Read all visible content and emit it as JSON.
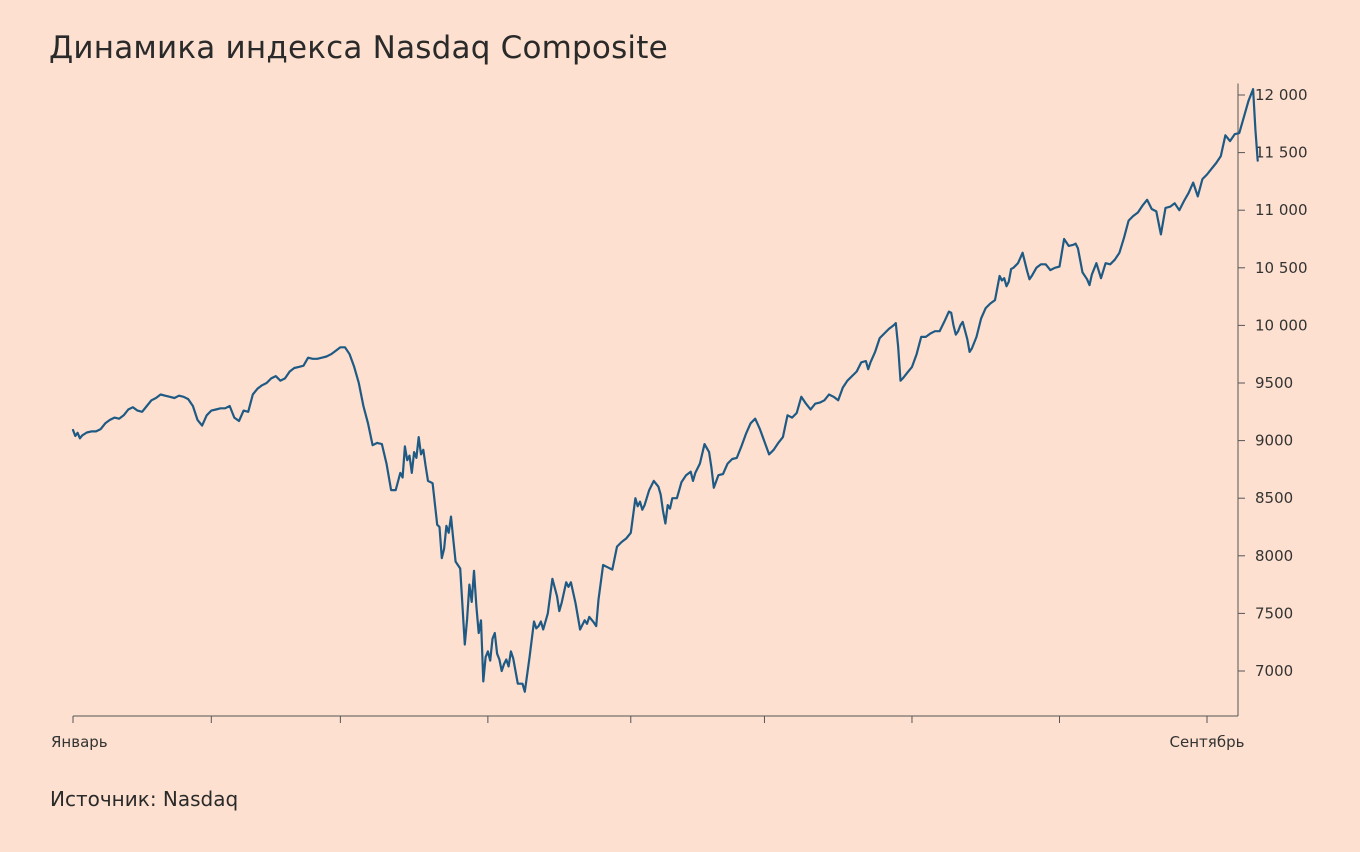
{
  "title": "Динамика индекса Nasdaq Composite",
  "source": "Источник: Nasdaq",
  "colors": {
    "background": "#fde0cf",
    "line": "#1f5a85",
    "axis": "#555555",
    "text": "#2a2a2a"
  },
  "chart_data": {
    "type": "line",
    "title": "Динамика индекса Nasdaq Composite",
    "xlabel": "",
    "ylabel": "",
    "y_axis_position": "right",
    "grid": false,
    "ylim": [
      6620,
      12100
    ],
    "xlim": [
      0,
      246
    ],
    "yticks": [
      7000,
      7500,
      8000,
      8500,
      9000,
      9500,
      10000,
      10500,
      11000,
      11500,
      12000
    ],
    "ytick_labels": [
      "7000",
      "7500",
      "8000",
      "8500",
      "9000",
      "9500",
      "10 000",
      "10 500",
      "11 000",
      "11 500",
      "12 000"
    ],
    "xticks": [
      0,
      30,
      58,
      90,
      121,
      150,
      182,
      214,
      246
    ],
    "x_labels": [
      {
        "at": 0,
        "text": "Январь"
      },
      {
        "at": 246,
        "text": "Сентябрь"
      }
    ],
    "series": [
      {
        "points": [
          [
            0,
            9092
          ],
          [
            0.5,
            9040
          ],
          [
            1,
            9068
          ],
          [
            1.5,
            9020
          ],
          [
            2,
            9045
          ],
          [
            3,
            9070
          ],
          [
            4,
            9080
          ],
          [
            5,
            9080
          ],
          [
            6,
            9100
          ],
          [
            7,
            9150
          ],
          [
            8,
            9180
          ],
          [
            9,
            9200
          ],
          [
            10,
            9190
          ],
          [
            11,
            9220
          ],
          [
            12,
            9270
          ],
          [
            13,
            9290
          ],
          [
            14,
            9260
          ],
          [
            15,
            9250
          ],
          [
            16,
            9300
          ],
          [
            17,
            9350
          ],
          [
            18,
            9370
          ],
          [
            19,
            9400
          ],
          [
            20,
            9390
          ],
          [
            21,
            9380
          ],
          [
            22,
            9370
          ],
          [
            23,
            9390
          ],
          [
            24,
            9380
          ],
          [
            25,
            9360
          ],
          [
            26,
            9300
          ],
          [
            27,
            9180
          ],
          [
            28,
            9130
          ],
          [
            29,
            9220
          ],
          [
            30,
            9260
          ],
          [
            31,
            9270
          ],
          [
            32,
            9280
          ],
          [
            33,
            9280
          ],
          [
            34,
            9300
          ],
          [
            35,
            9200
          ],
          [
            36,
            9170
          ],
          [
            37,
            9260
          ],
          [
            38,
            9250
          ],
          [
            39,
            9400
          ],
          [
            40,
            9450
          ],
          [
            41,
            9480
          ],
          [
            42,
            9500
          ],
          [
            43,
            9540
          ],
          [
            44,
            9560
          ],
          [
            45,
            9520
          ],
          [
            46,
            9540
          ],
          [
            47,
            9600
          ],
          [
            48,
            9630
          ],
          [
            49,
            9640
          ],
          [
            50,
            9650
          ],
          [
            51,
            9720
          ],
          [
            52,
            9710
          ],
          [
            53,
            9710
          ],
          [
            54,
            9720
          ],
          [
            55,
            9730
          ],
          [
            56,
            9750
          ],
          [
            57,
            9780
          ],
          [
            58,
            9810
          ],
          [
            59,
            9810
          ],
          [
            60,
            9750
          ],
          [
            61,
            9640
          ],
          [
            62,
            9500
          ],
          [
            63,
            9300
          ],
          [
            64,
            9150
          ],
          [
            65,
            8960
          ],
          [
            66,
            8980
          ],
          [
            67,
            8970
          ],
          [
            68,
            8800
          ],
          [
            69,
            8570
          ],
          [
            70,
            8570
          ],
          [
            71,
            8720
          ],
          [
            71.5,
            8680
          ],
          [
            72,
            8950
          ],
          [
            72.5,
            8830
          ],
          [
            73,
            8870
          ],
          [
            73.5,
            8720
          ],
          [
            74,
            8900
          ],
          [
            74.5,
            8850
          ],
          [
            75,
            9030
          ],
          [
            75.5,
            8880
          ],
          [
            76,
            8920
          ],
          [
            76.5,
            8780
          ],
          [
            77,
            8650
          ],
          [
            78,
            8630
          ],
          [
            79,
            8270
          ],
          [
            79.5,
            8250
          ],
          [
            80,
            7980
          ],
          [
            80.5,
            8060
          ],
          [
            81,
            8260
          ],
          [
            81.5,
            8200
          ],
          [
            82,
            8340
          ],
          [
            82.5,
            8140
          ],
          [
            83,
            7950
          ],
          [
            84,
            7890
          ],
          [
            85,
            7230
          ],
          [
            85.5,
            7450
          ],
          [
            86,
            7750
          ],
          [
            86.5,
            7600
          ],
          [
            87,
            7870
          ],
          [
            87.5,
            7560
          ],
          [
            88,
            7330
          ],
          [
            88.5,
            7440
          ],
          [
            89,
            6910
          ],
          [
            89.5,
            7120
          ],
          [
            90,
            7170
          ],
          [
            90.5,
            7090
          ],
          [
            91,
            7280
          ],
          [
            91.5,
            7330
          ],
          [
            92,
            7150
          ],
          [
            92.5,
            7100
          ],
          [
            93,
            7000
          ],
          [
            93.5,
            7060
          ],
          [
            94,
            7100
          ],
          [
            94.5,
            7040
          ],
          [
            95,
            7170
          ],
          [
            95.5,
            7110
          ],
          [
            96,
            7000
          ],
          [
            96.5,
            6890
          ],
          [
            97,
            6890
          ],
          [
            97.5,
            6890
          ],
          [
            98,
            6820
          ],
          [
            99,
            7110
          ],
          [
            100,
            7430
          ],
          [
            100.5,
            7370
          ],
          [
            101,
            7390
          ],
          [
            101.5,
            7430
          ],
          [
            102,
            7360
          ],
          [
            102.5,
            7430
          ],
          [
            103,
            7500
          ],
          [
            104,
            7800
          ],
          [
            105,
            7650
          ],
          [
            105.5,
            7520
          ],
          [
            106,
            7590
          ],
          [
            107,
            7770
          ],
          [
            107.5,
            7730
          ],
          [
            108,
            7770
          ],
          [
            109,
            7590
          ],
          [
            110,
            7360
          ],
          [
            111,
            7440
          ],
          [
            111.5,
            7410
          ],
          [
            112,
            7470
          ],
          [
            113,
            7420
          ],
          [
            113.5,
            7390
          ],
          [
            114,
            7620
          ],
          [
            115,
            7920
          ],
          [
            116,
            7900
          ],
          [
            117,
            7880
          ],
          [
            118,
            8080
          ],
          [
            119,
            8120
          ],
          [
            120,
            8150
          ],
          [
            121,
            8200
          ],
          [
            122,
            8500
          ],
          [
            122.5,
            8430
          ],
          [
            123,
            8470
          ],
          [
            123.5,
            8400
          ],
          [
            124,
            8440
          ],
          [
            125,
            8570
          ],
          [
            126,
            8650
          ],
          [
            127,
            8600
          ],
          [
            127.5,
            8530
          ],
          [
            128,
            8390
          ],
          [
            128.5,
            8280
          ],
          [
            129,
            8440
          ],
          [
            129.5,
            8410
          ],
          [
            130,
            8500
          ],
          [
            131,
            8500
          ],
          [
            132,
            8640
          ],
          [
            133,
            8700
          ],
          [
            134,
            8730
          ],
          [
            134.5,
            8650
          ],
          [
            135,
            8720
          ],
          [
            136,
            8800
          ],
          [
            137,
            8970
          ],
          [
            138,
            8900
          ],
          [
            138.5,
            8760
          ],
          [
            139,
            8590
          ],
          [
            140,
            8700
          ],
          [
            141,
            8710
          ],
          [
            142,
            8800
          ],
          [
            143,
            8840
          ],
          [
            144,
            8850
          ],
          [
            145,
            8950
          ],
          [
            146,
            9060
          ],
          [
            147,
            9150
          ],
          [
            148,
            9190
          ],
          [
            149,
            9100
          ],
          [
            150,
            8990
          ],
          [
            151,
            8880
          ],
          [
            152,
            8920
          ],
          [
            153,
            8980
          ],
          [
            154,
            9030
          ],
          [
            155,
            9220
          ],
          [
            156,
            9200
          ],
          [
            157,
            9240
          ],
          [
            158,
            9380
          ],
          [
            159,
            9320
          ],
          [
            160,
            9270
          ],
          [
            161,
            9320
          ],
          [
            162,
            9330
          ],
          [
            163,
            9350
          ],
          [
            164,
            9400
          ],
          [
            165,
            9380
          ],
          [
            166,
            9350
          ],
          [
            167,
            9460
          ],
          [
            168,
            9520
          ],
          [
            169,
            9560
          ],
          [
            170,
            9600
          ],
          [
            171,
            9680
          ],
          [
            172,
            9690
          ],
          [
            172.5,
            9620
          ],
          [
            173,
            9680
          ],
          [
            174,
            9770
          ],
          [
            175,
            9890
          ],
          [
            176,
            9930
          ],
          [
            177,
            9970
          ],
          [
            178,
            10000
          ],
          [
            178.5,
            10020
          ],
          [
            179,
            9820
          ],
          [
            179.5,
            9520
          ],
          [
            180,
            9540
          ],
          [
            181,
            9590
          ],
          [
            182,
            9640
          ],
          [
            183,
            9750
          ],
          [
            184,
            9900
          ],
          [
            185,
            9900
          ],
          [
            186,
            9930
          ],
          [
            187,
            9950
          ],
          [
            188,
            9950
          ],
          [
            189,
            10030
          ],
          [
            190,
            10120
          ],
          [
            190.5,
            10110
          ],
          [
            191,
            10000
          ],
          [
            191.5,
            9920
          ],
          [
            192,
            9950
          ],
          [
            192.5,
            10000
          ],
          [
            193,
            10030
          ],
          [
            194,
            9880
          ],
          [
            194.5,
            9770
          ],
          [
            195,
            9800
          ],
          [
            196,
            9900
          ],
          [
            197,
            10060
          ],
          [
            198,
            10150
          ],
          [
            199,
            10190
          ],
          [
            200,
            10220
          ],
          [
            201,
            10430
          ],
          [
            201.5,
            10390
          ],
          [
            202,
            10410
          ],
          [
            202.5,
            10340
          ],
          [
            203,
            10380
          ],
          [
            203.5,
            10490
          ],
          [
            204,
            10500
          ],
          [
            205,
            10540
          ],
          [
            206,
            10630
          ],
          [
            207,
            10470
          ],
          [
            207.5,
            10400
          ],
          [
            208,
            10430
          ],
          [
            209,
            10500
          ],
          [
            210,
            10530
          ],
          [
            211,
            10530
          ],
          [
            212,
            10480
          ],
          [
            213,
            10500
          ],
          [
            214,
            10510
          ],
          [
            215,
            10750
          ],
          [
            216,
            10690
          ],
          [
            217,
            10700
          ],
          [
            217.5,
            10710
          ],
          [
            218,
            10670
          ],
          [
            219,
            10460
          ],
          [
            220,
            10400
          ],
          [
            220.5,
            10350
          ],
          [
            221,
            10440
          ],
          [
            222,
            10540
          ],
          [
            223,
            10410
          ],
          [
            224,
            10540
          ],
          [
            225,
            10530
          ],
          [
            226,
            10570
          ],
          [
            227,
            10630
          ],
          [
            228,
            10760
          ],
          [
            229,
            10910
          ],
          [
            230,
            10950
          ],
          [
            231,
            10980
          ],
          [
            232,
            11040
          ],
          [
            233,
            11090
          ],
          [
            234,
            11010
          ],
          [
            235,
            10990
          ],
          [
            236,
            10790
          ],
          [
            237,
            11020
          ],
          [
            238,
            11030
          ],
          [
            239,
            11060
          ],
          [
            240,
            11000
          ],
          [
            241,
            11080
          ],
          [
            242,
            11150
          ],
          [
            243,
            11240
          ],
          [
            244,
            11120
          ],
          [
            245,
            11270
          ],
          [
            246,
            11310
          ],
          [
            247,
            11360
          ],
          [
            248,
            11410
          ],
          [
            249,
            11470
          ],
          [
            250,
            11650
          ],
          [
            251,
            11600
          ],
          [
            252,
            11660
          ],
          [
            253,
            11670
          ],
          [
            254,
            11810
          ],
          [
            255,
            11950
          ],
          [
            256,
            12050
          ],
          [
            256.5,
            11700
          ],
          [
            257,
            11430
          ]
        ]
      }
    ]
  }
}
